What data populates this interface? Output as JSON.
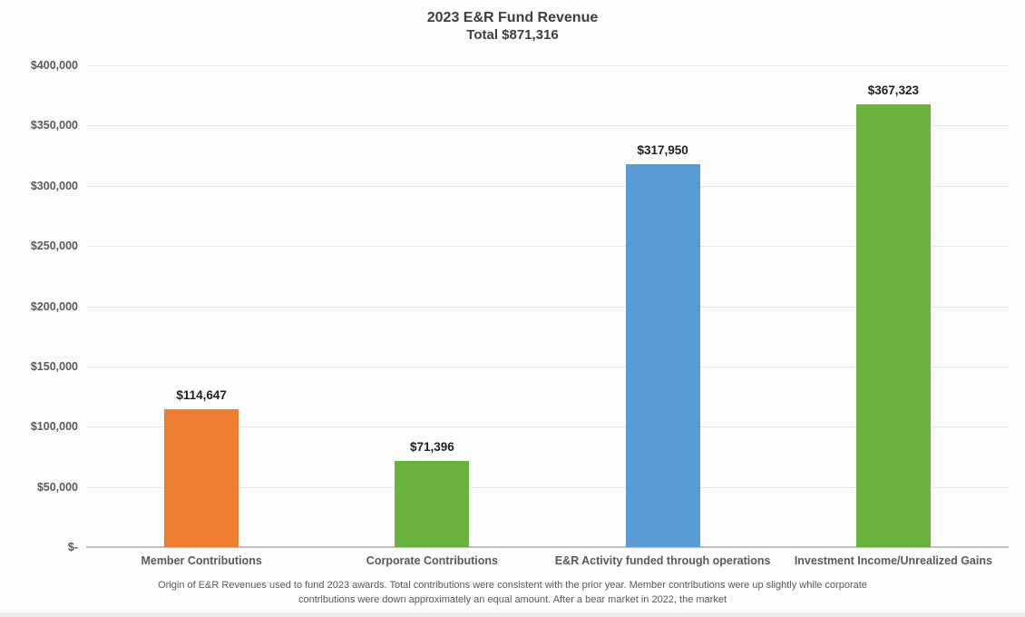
{
  "chart_data": {
    "type": "bar",
    "title": "2023 E&R Fund Revenue",
    "subtitle": "Total $871,316",
    "categories": [
      "Member Contributions",
      "Corporate Contributions",
      "E&R Activity funded through operations",
      "Investment Income/Unrealized Gains"
    ],
    "values": [
      114647,
      71396,
      317950,
      367323
    ],
    "value_labels": [
      "$114,647",
      "$71,396",
      "$317,950",
      "$367,323"
    ],
    "bar_colors": [
      "#ED7D31",
      "#6AB23E",
      "#5B9BD5",
      "#6AB23E"
    ],
    "ylim": [
      0,
      400000
    ],
    "ytick_step": 50000,
    "ytick_labels": [
      "$-",
      "$50,000",
      "$100,000",
      "$150,000",
      "$200,000",
      "$250,000",
      "$300,000",
      "$350,000",
      "$400,000"
    ],
    "grid": true,
    "legend": "none",
    "xlabel": "",
    "ylabel": "",
    "caption_line1": "Origin of E&R Revenues used to fund 2023 awards. Total contributions were consistent with the prior year. Member contributions were up slightly while corporate",
    "caption_line2": "contributions were down approximately an equal amount. After a bear market in 2022, the market"
  },
  "style": {
    "gridline_color": "#e7e7e7",
    "baseline_color": "#bfbfbf",
    "title_color": "#3f3f3f",
    "axis_label_color": "#595959",
    "value_label_color": "#1f1f1f",
    "background": "#fdfdfd"
  }
}
